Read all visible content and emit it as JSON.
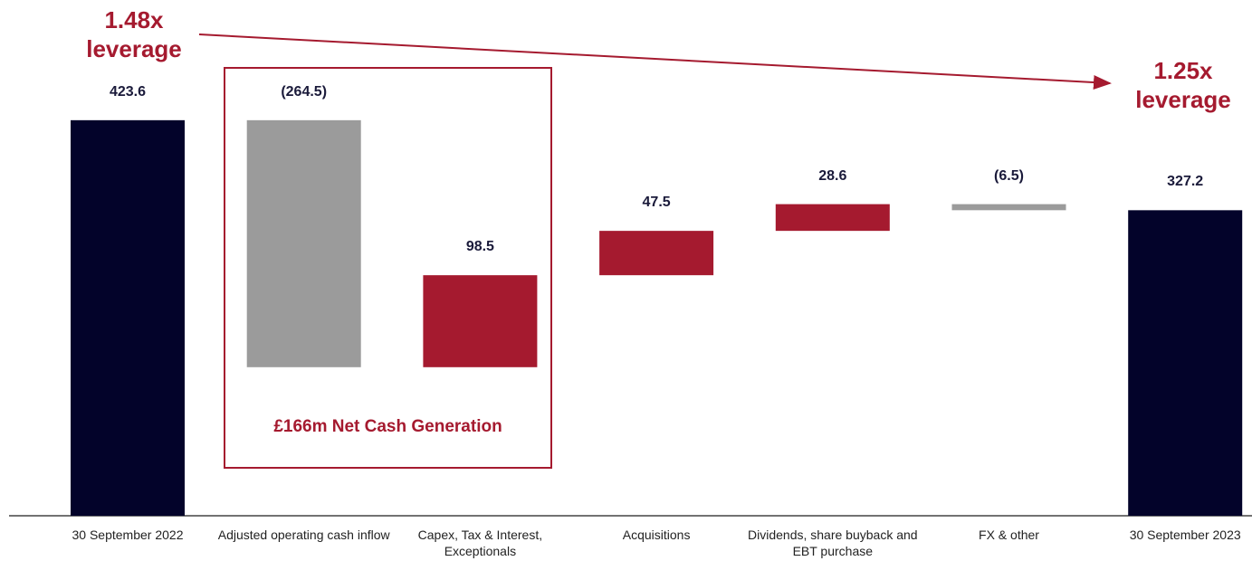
{
  "chart_data": {
    "type": "waterfall",
    "categories": [
      "30 September 2022",
      "Adjusted operating cash inflow",
      "Capex, Tax & Interest, Exceptionals",
      "Acquisitions",
      "Dividends, share buyback and EBT purchase",
      "FX & other",
      "30 September 2023"
    ],
    "values": [
      423.6,
      -264.5,
      98.5,
      47.5,
      28.6,
      -6.5,
      327.2
    ],
    "value_labels": [
      "423.6",
      "(264.5)",
      "98.5",
      "47.5",
      "28.6",
      "(6.5)",
      "327.2"
    ],
    "measure": [
      "absolute",
      "relative",
      "relative",
      "relative",
      "relative",
      "relative",
      "absolute"
    ],
    "colors": [
      "#03032a",
      "#9b9b9b",
      "#a51a2f",
      "#a51a2f",
      "#a51a2f",
      "#9b9b9b",
      "#03032a"
    ],
    "annotations": {
      "start_leverage": [
        "1.48x",
        "leverage"
      ],
      "end_leverage": [
        "1.25x",
        "leverage"
      ],
      "box_label": "£166m Net Cash Generation"
    }
  }
}
